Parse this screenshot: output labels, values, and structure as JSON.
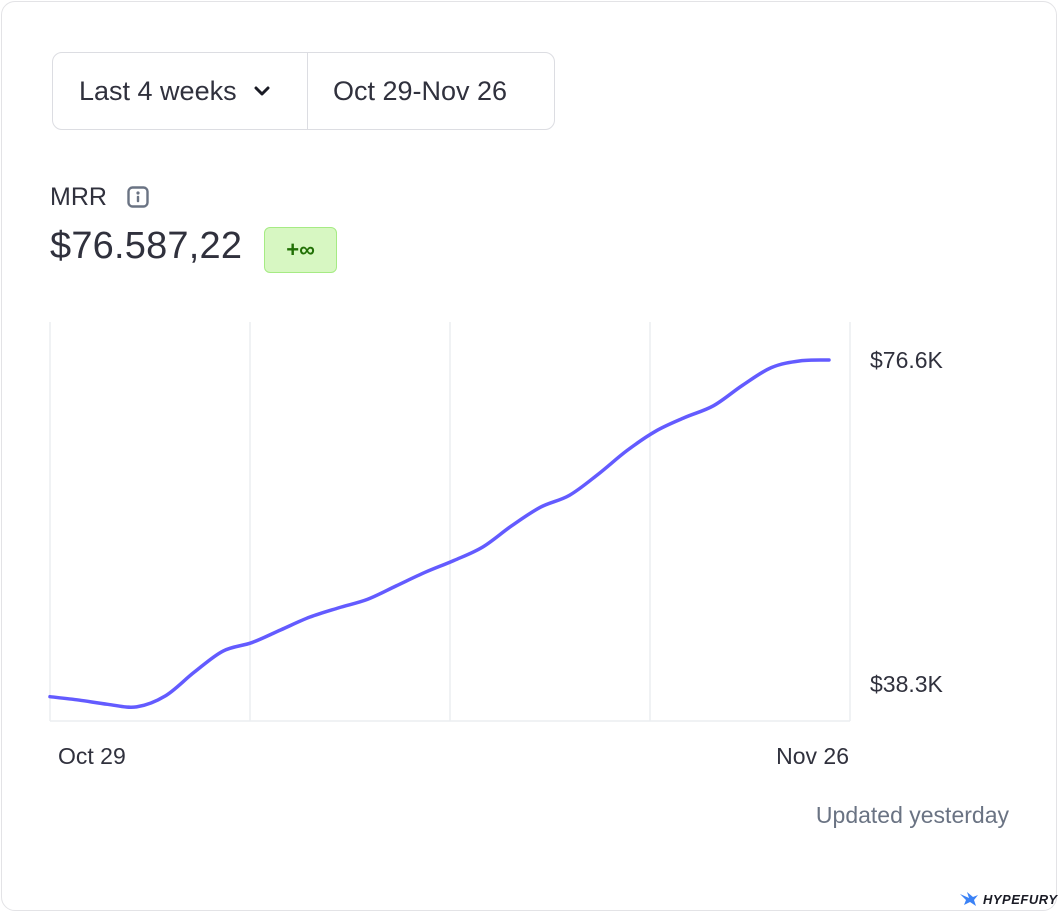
{
  "range": {
    "select_label": "Last 4 weeks",
    "dates": "Oct 29-Nov 26"
  },
  "metric": {
    "label": "MRR",
    "value": "$76.587,22",
    "change_badge": "+∞"
  },
  "footer": {
    "updated": "Updated yesterday",
    "brand": "HYPEFURY"
  },
  "colors": {
    "line": "#635bff",
    "badge_bg": "#d7f7c2",
    "badge_text": "#217005"
  },
  "chart_data": {
    "type": "line",
    "title": "",
    "xlabel": "",
    "ylabel": "",
    "x_tick_labels": [
      "Oct 29",
      "Nov 26"
    ],
    "y_tick_labels": [
      "$76.6K",
      "$38.3K"
    ],
    "y_tick_values": [
      76600,
      38300
    ],
    "grid": "vertical",
    "series": [
      {
        "x": [
          "Oct 29",
          "Oct 30",
          "Oct 31",
          "Nov 1",
          "Nov 2",
          "Nov 3",
          "Nov 4",
          "Nov 5",
          "Nov 6",
          "Nov 7",
          "Nov 8",
          "Nov 9",
          "Nov 10",
          "Nov 11",
          "Nov 12",
          "Nov 13",
          "Nov 14",
          "Nov 15",
          "Nov 16",
          "Nov 17",
          "Nov 18",
          "Nov 19",
          "Nov 20",
          "Nov 21",
          "Nov 22",
          "Nov 23",
          "Nov 24",
          "Nov 25"
        ],
        "values": [
          36800,
          36400,
          35900,
          35600,
          36900,
          39700,
          42200,
          43200,
          44700,
          46200,
          47300,
          48300,
          49900,
          51500,
          52900,
          54500,
          57000,
          59200,
          60600,
          63100,
          65900,
          68200,
          69800,
          71200,
          73600,
          75700,
          76500,
          76600
        ]
      }
    ]
  }
}
